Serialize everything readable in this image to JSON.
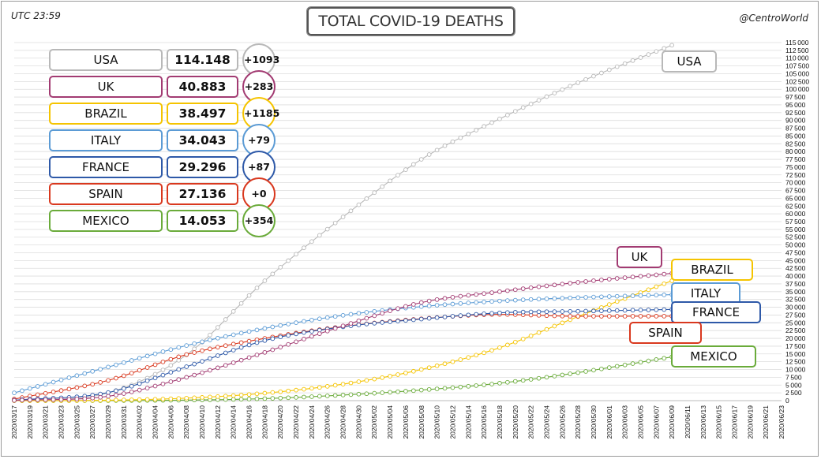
{
  "header": {
    "utc": "UTC 23:59",
    "title": "TOTAL COVID-19 DEATHS",
    "handle": "@CentroWorld"
  },
  "colors": {
    "USA": "#b8b8b8",
    "UK": "#a23b72",
    "BRAZIL": "#f5c400",
    "ITALY": "#5b9bd5",
    "FRANCE": "#2e59a8",
    "SPAIN": "#d9381e",
    "MEXICO": "#6aab3a"
  },
  "panel": [
    {
      "country": "USA",
      "total": "114.148",
      "delta": "+1093"
    },
    {
      "country": "UK",
      "total": "40.883",
      "delta": "+283"
    },
    {
      "country": "BRAZIL",
      "total": "38.497",
      "delta": "+1185"
    },
    {
      "country": "ITALY",
      "total": "34.043",
      "delta": "+79"
    },
    {
      "country": "FRANCE",
      "total": "29.296",
      "delta": "+87"
    },
    {
      "country": "SPAIN",
      "total": "27.136",
      "delta": "+0"
    },
    {
      "country": "MEXICO",
      "total": "14.053",
      "delta": "+354"
    }
  ],
  "chart_data": {
    "type": "line",
    "title": "TOTAL COVID-19 DEATHS",
    "x_start": "2020/03/17",
    "x_end": "2020/06/23",
    "x_tick_labels": [
      "2020/03/17",
      "2020/03/19",
      "2020/03/21",
      "2020/03/23",
      "2020/03/25",
      "2020/03/27",
      "2020/03/29",
      "2020/03/31",
      "2020/04/02",
      "2020/04/04",
      "2020/04/06",
      "2020/04/08",
      "2020/04/10",
      "2020/04/12",
      "2020/04/14",
      "2020/04/16",
      "2020/04/18",
      "2020/04/20",
      "2020/04/22",
      "2020/04/24",
      "2020/04/26",
      "2020/04/28",
      "2020/04/30",
      "2020/05/02",
      "2020/05/04",
      "2020/05/06",
      "2020/05/08",
      "2020/05/10",
      "2020/05/12",
      "2020/05/14",
      "2020/05/16",
      "2020/05/18",
      "2020/05/20",
      "2020/05/22",
      "2020/05/24",
      "2020/05/26",
      "2020/05/28",
      "2020/05/30",
      "2020/06/01",
      "2020/06/03",
      "2020/06/05",
      "2020/06/07",
      "2020/06/09",
      "2020/06/11",
      "2020/06/13",
      "2020/06/15",
      "2020/06/17",
      "2020/06/19",
      "2020/06/21",
      "2020/06/23"
    ],
    "ylim": [
      0,
      115000
    ],
    "ytick_step": 2500,
    "grid": true,
    "legend": "end-of-line labels",
    "series": [
      {
        "name": "USA",
        "dates": [
          "2020/03/17",
          "2020/03/29",
          "2020/04/08",
          "2020/04/18",
          "2020/04/28",
          "2020/05/08",
          "2020/05/18",
          "2020/05/28",
          "2020/06/09"
        ],
        "values": [
          100,
          2500,
          14700,
          38500,
          59000,
          77500,
          90500,
          102100,
          114148
        ]
      },
      {
        "name": "UK",
        "dates": [
          "2020/03/17",
          "2020/03/29",
          "2020/04/08",
          "2020/04/18",
          "2020/04/28",
          "2020/05/08",
          "2020/05/18",
          "2020/05/28",
          "2020/06/09"
        ],
        "values": [
          70,
          1400,
          7500,
          15500,
          24000,
          31500,
          35000,
          38000,
          40883
        ]
      },
      {
        "name": "BRAZIL",
        "dates": [
          "2020/03/17",
          "2020/03/29",
          "2020/04/08",
          "2020/04/18",
          "2020/04/28",
          "2020/05/08",
          "2020/05/18",
          "2020/05/28",
          "2020/06/09"
        ],
        "values": [
          1,
          140,
          800,
          2400,
          5300,
          10000,
          17000,
          27000,
          38497
        ]
      },
      {
        "name": "ITALY",
        "dates": [
          "2020/03/17",
          "2020/03/29",
          "2020/04/08",
          "2020/04/18",
          "2020/04/28",
          "2020/05/08",
          "2020/05/18",
          "2020/05/28",
          "2020/06/09"
        ],
        "values": [
          2500,
          10800,
          17700,
          23200,
          27400,
          30200,
          32000,
          33100,
          34043
        ]
      },
      {
        "name": "FRANCE",
        "dates": [
          "2020/03/17",
          "2020/03/29",
          "2020/04/08",
          "2020/04/18",
          "2020/04/28",
          "2020/05/08",
          "2020/05/18",
          "2020/05/28",
          "2020/06/09"
        ],
        "values": [
          150,
          2600,
          10900,
          19300,
          23700,
          26200,
          28200,
          28700,
          29296
        ]
      },
      {
        "name": "SPAIN",
        "dates": [
          "2020/03/17",
          "2020/03/29",
          "2020/04/08",
          "2020/04/18",
          "2020/04/28",
          "2020/05/08",
          "2020/05/18",
          "2020/05/28",
          "2020/06/09"
        ],
        "values": [
          500,
          6500,
          14800,
          20000,
          23800,
          26300,
          27700,
          27100,
          27136
        ]
      },
      {
        "name": "MEXICO",
        "dates": [
          "2020/03/17",
          "2020/03/29",
          "2020/04/08",
          "2020/04/18",
          "2020/04/28",
          "2020/05/08",
          "2020/05/18",
          "2020/05/28",
          "2020/06/09"
        ],
        "values": [
          0,
          16,
          174,
          650,
          1800,
          3400,
          5600,
          9000,
          14053
        ]
      }
    ],
    "end_labels": [
      "USA",
      "UK",
      "BRAZIL",
      "ITALY",
      "FRANCE",
      "SPAIN",
      "MEXICO"
    ]
  }
}
